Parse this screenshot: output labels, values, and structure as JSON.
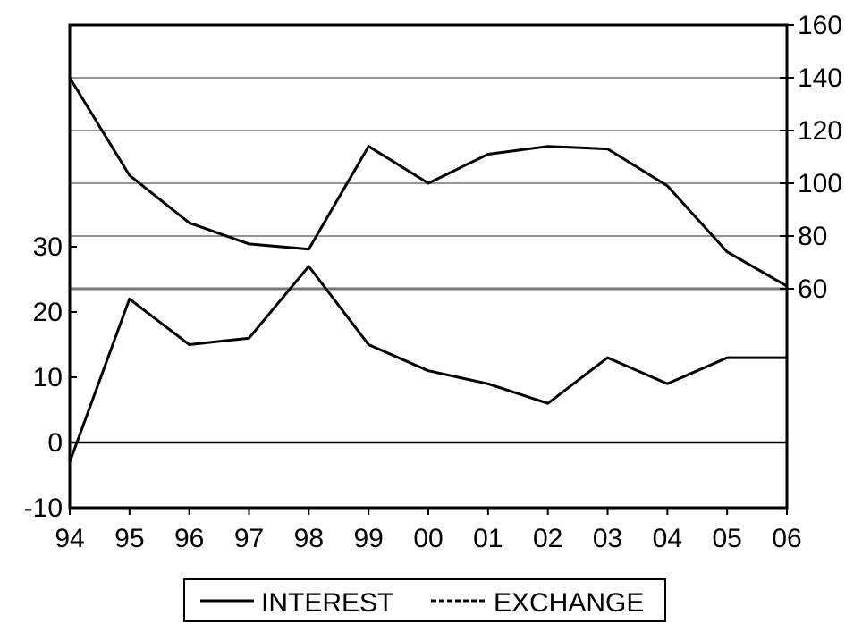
{
  "chart_data": {
    "type": "line",
    "title": "",
    "xlabel": "",
    "ylabel": "",
    "x": [
      "94",
      "95",
      "96",
      "97",
      "98",
      "99",
      "00",
      "01",
      "02",
      "03",
      "04",
      "05",
      "06"
    ],
    "left_axis": {
      "ticks": [
        "-10",
        "0",
        "10",
        "20",
        "30"
      ],
      "tick_values": [
        -10,
        0,
        10,
        20,
        30
      ]
    },
    "right_axis": {
      "ticks": [
        "60",
        "80",
        "100",
        "120",
        "140",
        "160"
      ],
      "tick_values": [
        60,
        80,
        100,
        120,
        140,
        160
      ]
    },
    "grid": "horizontal at right-axis ticks",
    "legend_position": "bottom-center",
    "series": [
      {
        "name": "INTEREST",
        "axis": "left",
        "style": "solid",
        "values": [
          -3,
          22,
          15,
          16,
          27,
          15,
          11,
          9,
          6,
          13,
          9,
          13,
          13
        ]
      },
      {
        "name": "EXCHANGE",
        "axis": "right",
        "style": "dashed",
        "values": [
          140,
          103,
          85,
          77,
          75,
          114,
          100,
          111,
          114,
          113,
          99,
          74,
          61
        ]
      }
    ]
  }
}
